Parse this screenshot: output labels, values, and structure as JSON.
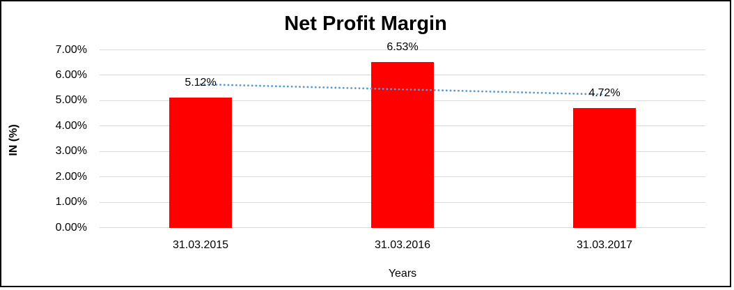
{
  "chart_data": {
    "type": "bar",
    "title": "Net Profit Margin",
    "xlabel": "Years",
    "ylabel": "IN (%)",
    "categories": [
      "31.03.2015",
      "31.03.2016",
      "31.03.2017"
    ],
    "values": [
      5.12,
      6.53,
      4.72
    ],
    "data_labels": [
      "5.12%",
      "6.53%",
      "4.72%"
    ],
    "ylim": [
      0,
      7
    ],
    "ytick_step": 1,
    "ytick_labels": [
      "0.00%",
      "1.00%",
      "2.00%",
      "3.00%",
      "4.00%",
      "5.00%",
      "6.00%",
      "7.00%"
    ],
    "grid": true,
    "legend": "none",
    "colors": {
      "bar": "#FF0000",
      "trendline": "#5B9BD5",
      "gridline": "#D9D9D9",
      "text": "#000000",
      "border": "#000000"
    },
    "trendline": {
      "type": "linear",
      "style": "dotted"
    }
  }
}
